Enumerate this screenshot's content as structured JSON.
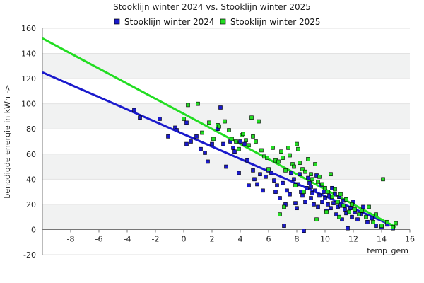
{
  "chart_data": {
    "type": "scatter",
    "title": "Stooklijn winter 2024 vs. Stooklijn winter 2025",
    "xlabel": "temp_gem",
    "ylabel": "benodigde energie in kWh ->",
    "xlim": [
      -10,
      16
    ],
    "ylim": [
      -20,
      160
    ],
    "x_ticks": [
      -8,
      -6,
      -4,
      -2,
      0,
      2,
      4,
      6,
      8,
      10,
      12,
      14,
      16
    ],
    "y_ticks": [
      -20,
      0,
      20,
      40,
      60,
      80,
      100,
      120,
      140,
      160
    ],
    "grid": true,
    "legend_position": "top",
    "series": [
      {
        "name": "Stooklijn winter 2024",
        "color": "#1a1acc",
        "marker": "square",
        "trendline": {
          "x": [
            -10,
            15
          ],
          "y": [
            125,
            2
          ]
        },
        "points": [
          [
            -3.5,
            95
          ],
          [
            -3.1,
            89
          ],
          [
            -1.7,
            88
          ],
          [
            -1.1,
            74
          ],
          [
            -0.6,
            81
          ],
          [
            -0.5,
            79
          ],
          [
            0.2,
            85
          ],
          [
            0.2,
            68
          ],
          [
            0.5,
            70
          ],
          [
            0.9,
            74
          ],
          [
            1.2,
            64
          ],
          [
            1.5,
            61
          ],
          [
            1.7,
            54
          ],
          [
            2.0,
            68
          ],
          [
            2.6,
            97
          ],
          [
            2.4,
            80
          ],
          [
            2.8,
            68
          ],
          [
            3.0,
            50
          ],
          [
            3.3,
            70
          ],
          [
            3.5,
            65
          ],
          [
            3.6,
            62
          ],
          [
            3.9,
            45
          ],
          [
            4.0,
            70
          ],
          [
            4.3,
            68
          ],
          [
            4.5,
            55
          ],
          [
            4.6,
            35
          ],
          [
            4.9,
            47
          ],
          [
            5.0,
            40
          ],
          [
            5.2,
            36
          ],
          [
            5.4,
            44
          ],
          [
            5.6,
            31
          ],
          [
            5.8,
            42
          ],
          [
            6.0,
            47
          ],
          [
            6.2,
            45
          ],
          [
            6.4,
            39
          ],
          [
            6.6,
            35
          ],
          [
            6.8,
            25
          ],
          [
            7.0,
            37
          ],
          [
            7.1,
            3
          ],
          [
            7.3,
            31
          ],
          [
            7.5,
            28
          ],
          [
            7.6,
            45
          ],
          [
            7.8,
            40
          ],
          [
            7.9,
            21
          ],
          [
            8.0,
            17
          ],
          [
            8.1,
            36
          ],
          [
            8.3,
            30
          ],
          [
            8.4,
            27
          ],
          [
            8.5,
            -1
          ],
          [
            8.6,
            22
          ],
          [
            8.7,
            33
          ],
          [
            8.8,
            41
          ],
          [
            8.9,
            37
          ],
          [
            9.0,
            25
          ],
          [
            9.1,
            29
          ],
          [
            9.2,
            20
          ],
          [
            9.3,
            31
          ],
          [
            9.4,
            43
          ],
          [
            9.5,
            18
          ],
          [
            9.6,
            27
          ],
          [
            9.7,
            35
          ],
          [
            9.8,
            22
          ],
          [
            9.9,
            30
          ],
          [
            10.0,
            25
          ],
          [
            10.1,
            15
          ],
          [
            10.2,
            20
          ],
          [
            10.3,
            27
          ],
          [
            10.4,
            17
          ],
          [
            10.5,
            33
          ],
          [
            10.6,
            21
          ],
          [
            10.8,
            12
          ],
          [
            10.9,
            18
          ],
          [
            11.0,
            26
          ],
          [
            11.1,
            19
          ],
          [
            11.2,
            8
          ],
          [
            11.3,
            23
          ],
          [
            11.5,
            13
          ],
          [
            11.6,
            1
          ],
          [
            11.8,
            17
          ],
          [
            11.9,
            10
          ],
          [
            12.1,
            14
          ],
          [
            12.3,
            8
          ],
          [
            12.5,
            12
          ],
          [
            12.7,
            18
          ],
          [
            13.0,
            6
          ],
          [
            13.3,
            9
          ],
          [
            13.6,
            3
          ],
          [
            14.0,
            2
          ],
          [
            14.4,
            4
          ],
          [
            14.8,
            1
          ],
          [
            6.5,
            30
          ],
          [
            7.2,
            20
          ],
          [
            8.2,
            44
          ],
          [
            9.0,
            34
          ],
          [
            10.7,
            28
          ],
          [
            11.4,
            16
          ],
          [
            12.0,
            22
          ]
        ]
      },
      {
        "name": "Stooklijn winter 2025",
        "color": "#22dd22",
        "marker": "square",
        "trendline": {
          "x": [
            -10,
            15
          ],
          "y": [
            152,
            2
          ]
        },
        "points": [
          [
            0.0,
            88
          ],
          [
            0.3,
            99
          ],
          [
            1.0,
            100
          ],
          [
            1.3,
            77
          ],
          [
            1.8,
            85
          ],
          [
            2.1,
            72
          ],
          [
            2.4,
            83
          ],
          [
            2.5,
            82
          ],
          [
            2.9,
            86
          ],
          [
            3.2,
            79
          ],
          [
            3.4,
            72
          ],
          [
            3.7,
            70
          ],
          [
            3.9,
            64
          ],
          [
            4.1,
            75
          ],
          [
            4.2,
            76
          ],
          [
            4.4,
            71
          ],
          [
            4.6,
            67
          ],
          [
            4.8,
            89
          ],
          [
            4.9,
            74
          ],
          [
            5.1,
            70
          ],
          [
            5.3,
            86
          ],
          [
            5.5,
            63
          ],
          [
            5.7,
            58
          ],
          [
            5.9,
            57
          ],
          [
            6.0,
            48
          ],
          [
            6.3,
            65
          ],
          [
            6.5,
            55
          ],
          [
            6.7,
            54
          ],
          [
            6.9,
            62
          ],
          [
            7.0,
            57
          ],
          [
            7.2,
            47
          ],
          [
            7.4,
            65
          ],
          [
            7.5,
            59
          ],
          [
            7.7,
            52
          ],
          [
            7.8,
            50
          ],
          [
            8.0,
            68
          ],
          [
            8.1,
            64
          ],
          [
            8.2,
            53
          ],
          [
            8.4,
            48
          ],
          [
            8.6,
            46
          ],
          [
            8.8,
            56
          ],
          [
            9.0,
            44
          ],
          [
            9.1,
            40
          ],
          [
            9.3,
            52
          ],
          [
            9.5,
            38
          ],
          [
            9.6,
            42
          ],
          [
            9.8,
            36
          ],
          [
            10.0,
            33
          ],
          [
            10.2,
            30
          ],
          [
            10.4,
            44
          ],
          [
            10.5,
            26
          ],
          [
            10.7,
            32
          ],
          [
            10.9,
            22
          ],
          [
            11.1,
            28
          ],
          [
            11.3,
            19
          ],
          [
            11.5,
            24
          ],
          [
            11.7,
            14
          ],
          [
            11.9,
            20
          ],
          [
            12.1,
            16
          ],
          [
            12.4,
            12
          ],
          [
            12.6,
            15
          ],
          [
            12.9,
            10
          ],
          [
            13.1,
            18
          ],
          [
            13.4,
            6
          ],
          [
            13.6,
            12
          ],
          [
            14.0,
            3
          ],
          [
            14.1,
            40
          ],
          [
            14.4,
            6
          ],
          [
            14.8,
            2
          ],
          [
            15.0,
            5
          ],
          [
            6.8,
            12
          ],
          [
            7.1,
            18
          ],
          [
            7.9,
            35
          ],
          [
            8.5,
            30
          ],
          [
            9.4,
            8
          ],
          [
            10.1,
            14
          ],
          [
            11.0,
            10
          ]
        ]
      }
    ]
  }
}
